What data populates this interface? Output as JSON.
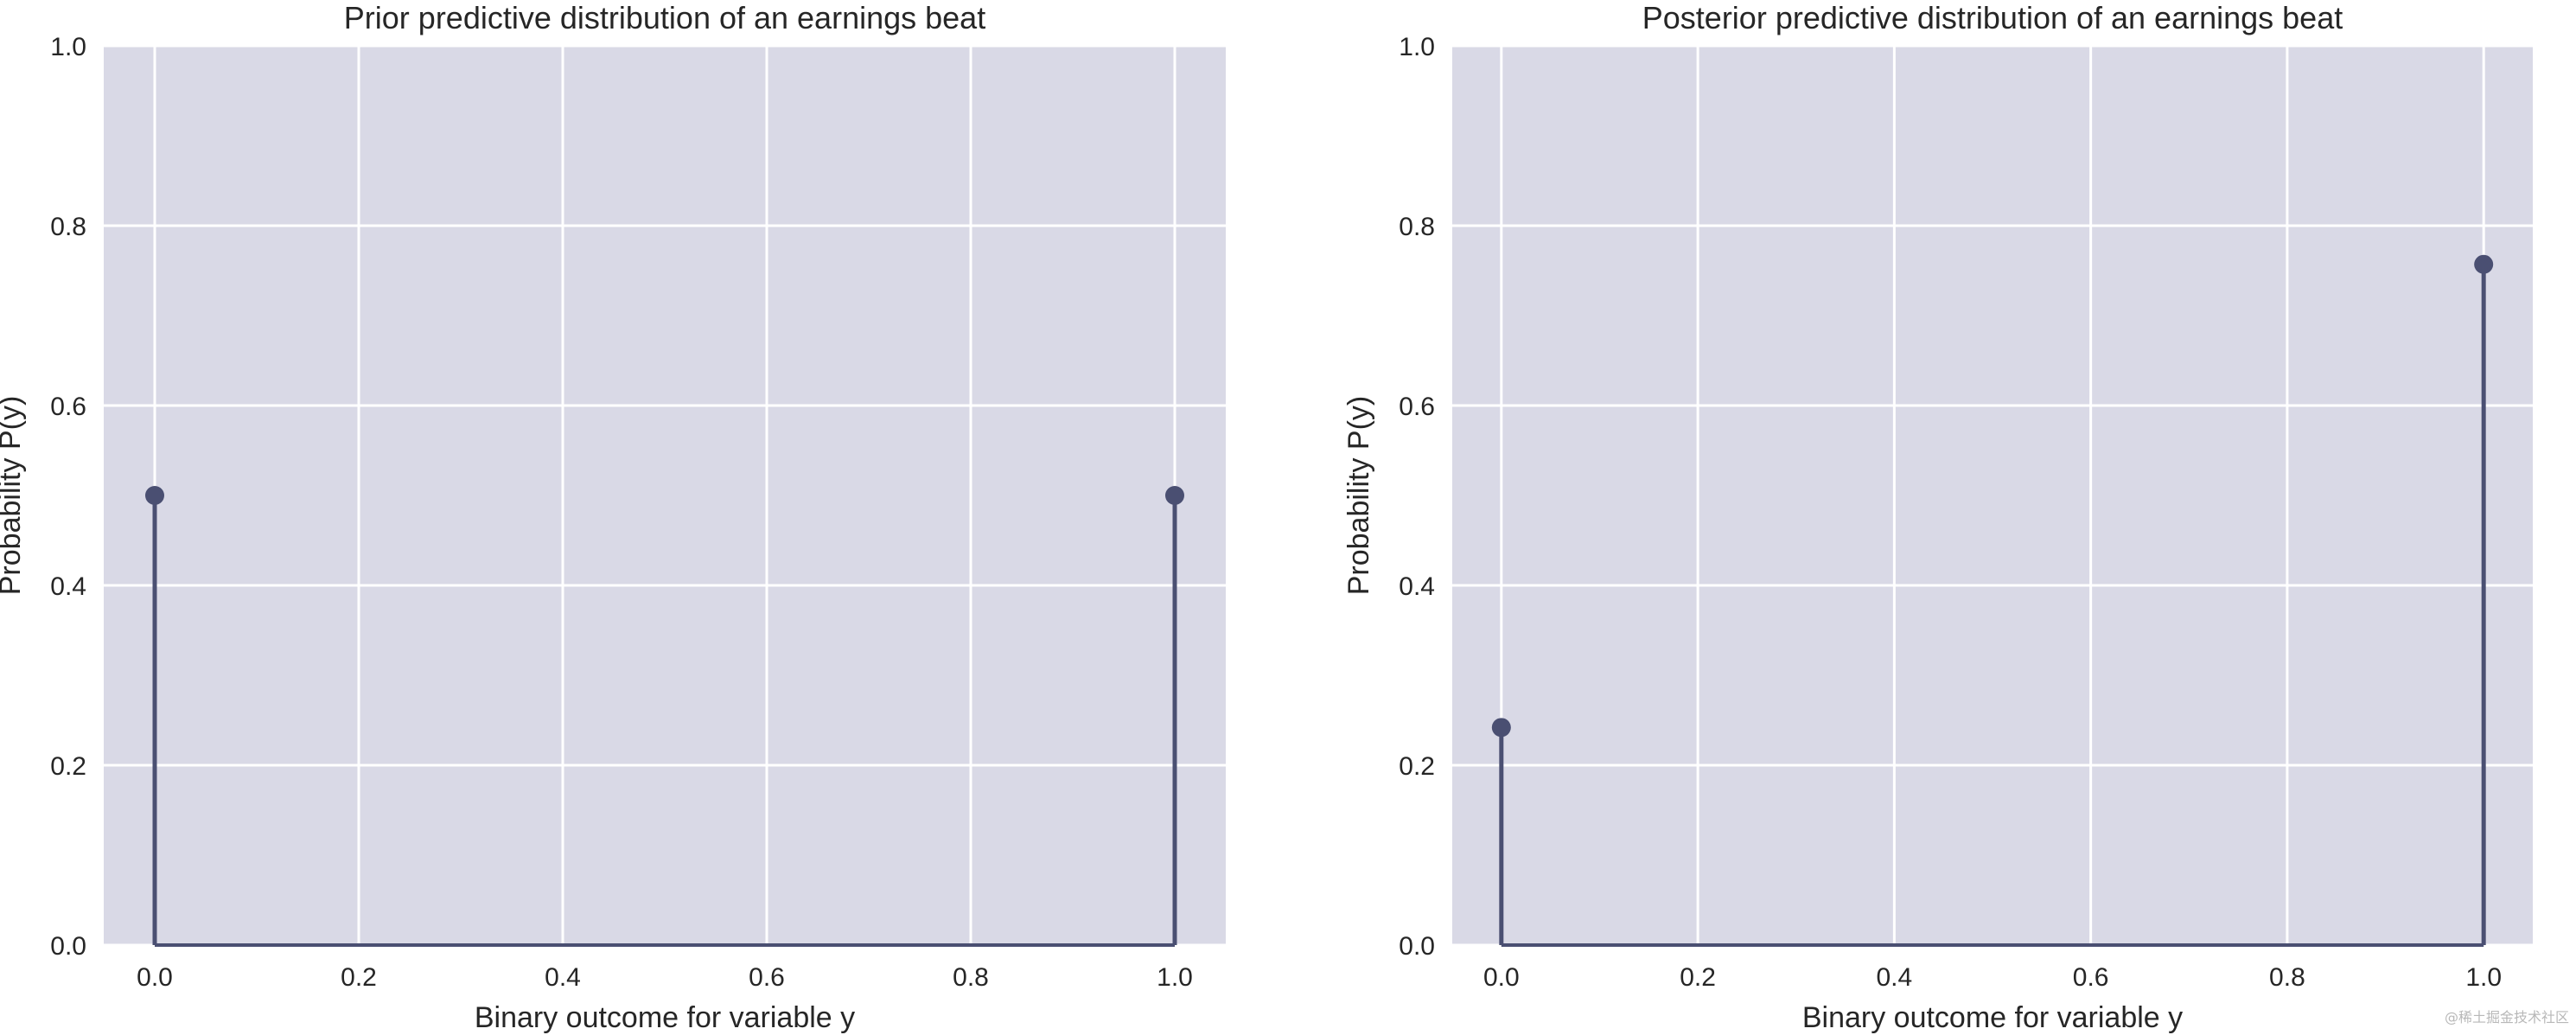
{
  "chart_data": [
    {
      "type": "stem",
      "title": "Prior predictive distribution of an earnings beat",
      "xlabel": "Binary outcome for variable y",
      "ylabel": "Probability P(y)",
      "x": [
        0.0,
        1.0
      ],
      "y": [
        0.5,
        0.5
      ],
      "xlim": [
        -0.05,
        1.05
      ],
      "ylim": [
        0.0,
        1.0
      ],
      "xticks": [
        "0.0",
        "0.2",
        "0.4",
        "0.6",
        "0.8",
        "1.0"
      ],
      "yticks": [
        "0.0",
        "0.2",
        "0.4",
        "0.6",
        "0.8",
        "1.0"
      ],
      "grid": true,
      "colors": {
        "background": "#d9d9e6",
        "grid": "#ffffff",
        "series": "#4a4f72"
      }
    },
    {
      "type": "stem",
      "title": "Posterior predictive distribution of an earnings beat",
      "xlabel": "Binary outcome for variable y",
      "ylabel": "Probability P(y)",
      "x": [
        0.0,
        1.0
      ],
      "y": [
        0.242,
        0.757
      ],
      "xlim": [
        -0.05,
        1.05
      ],
      "ylim": [
        0.0,
        1.0
      ],
      "xticks": [
        "0.0",
        "0.2",
        "0.4",
        "0.6",
        "0.8",
        "1.0"
      ],
      "yticks": [
        "0.0",
        "0.2",
        "0.4",
        "0.6",
        "0.8",
        "1.0"
      ],
      "grid": true,
      "colors": {
        "background": "#d9d9e6",
        "grid": "#ffffff",
        "series": "#4a4f72"
      }
    }
  ],
  "watermark": "@稀土掘金技术社区"
}
